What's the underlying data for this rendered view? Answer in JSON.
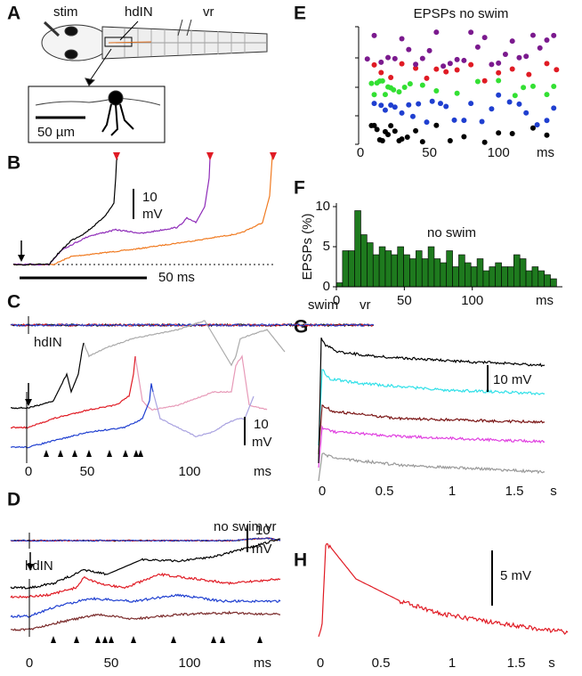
{
  "panel_labels": [
    "A",
    "B",
    "C",
    "D",
    "E",
    "F",
    "G",
    "H"
  ],
  "A": {
    "labels": [
      "stim",
      "hdIN",
      "vr"
    ],
    "scale": "50 µm"
  },
  "B": {
    "scale_v": [
      "10",
      "mV"
    ],
    "scale_t": "50 ms"
  },
  "C": {
    "vr_labels": [
      "swim",
      "vr"
    ],
    "cell": "hdIN",
    "scale_v": [
      "10",
      "mV"
    ],
    "ticks": [
      "0",
      "50",
      "100"
    ],
    "unit": "ms"
  },
  "D": {
    "vr_labels": [
      "no swim",
      "vr"
    ],
    "cell": "hdIN",
    "scale_v": [
      "10",
      "mV"
    ],
    "ticks": [
      "0",
      "50",
      "100"
    ],
    "unit": "ms"
  },
  "G": {
    "scale": "10 mV",
    "ticks": [
      "0",
      "0.5",
      "1",
      "1.5"
    ],
    "unit": "s"
  },
  "H": {
    "scale": "5 mV",
    "ticks": [
      "0",
      "0.5",
      "1",
      "1.5"
    ],
    "unit": "s"
  },
  "chart_data": [
    {
      "type": "raster",
      "title": "EPSPs no swim",
      "xlabel": "ms",
      "xlim": [
        0,
        145
      ],
      "xticks": [
        0,
        50,
        100
      ],
      "series": [
        {
          "color": "#000000",
          "x": [
            8,
            10,
            12,
            14,
            16,
            18,
            20,
            22,
            25,
            28,
            30,
            34,
            40,
            45,
            55,
            65,
            75,
            90,
            100,
            110,
            125,
            135
          ]
        },
        {
          "color": "#1f3fd0",
          "x": [
            10,
            15,
            18,
            22,
            25,
            30,
            35,
            38,
            42,
            48,
            52,
            58,
            62,
            68,
            75,
            80,
            88,
            95,
            100,
            108,
            115,
            120,
            128,
            135,
            140
          ]
        },
        {
          "color": "#33e033",
          "x": [
            8,
            10,
            12,
            14,
            16,
            18,
            20,
            22,
            24,
            28,
            32,
            36,
            45,
            55,
            70,
            85,
            100,
            112,
            118,
            125,
            135,
            140
          ]
        },
        {
          "color": "#e01b24",
          "x": [
            10,
            15,
            22,
            30,
            40,
            48,
            55,
            62,
            70,
            80,
            90,
            100,
            110,
            122,
            135,
            142
          ]
        },
        {
          "color": "#7b1a8e",
          "x": [
            5,
            10,
            15,
            20,
            25,
            30,
            35,
            40,
            45,
            50,
            55,
            60,
            65,
            70,
            75,
            80,
            85,
            90,
            95,
            100,
            105,
            110,
            115,
            120,
            125,
            130,
            135,
            140
          ]
        }
      ]
    },
    {
      "type": "histogram",
      "ylabel": "EPSPs (%)",
      "annotation": "no swim",
      "xlabel": "ms",
      "color": "#1e7a1e",
      "xlim": [
        0,
        165
      ],
      "xticks": [
        0,
        50,
        100
      ],
      "ylim": [
        0,
        10
      ],
      "yticks": [
        0,
        5,
        10
      ],
      "bins": [
        0,
        4.5,
        9,
        13.5,
        18,
        22.5,
        27,
        31.5,
        36,
        40.5,
        45,
        49.5,
        54,
        58.5,
        63,
        67.5,
        72,
        76.5,
        81,
        85.5,
        90,
        94.5,
        99,
        103.5,
        108,
        112.5,
        117,
        121.5,
        126,
        130.5,
        135,
        139.5,
        144,
        148.5,
        153,
        157.5,
        162
      ],
      "values": [
        0.5,
        4.5,
        4.5,
        9.5,
        6.5,
        5.5,
        4,
        5,
        4.5,
        4,
        5,
        4,
        3.5,
        4.5,
        3.5,
        5,
        3.5,
        3,
        4.5,
        2.5,
        4,
        3,
        2.5,
        3.5,
        2,
        2.5,
        3,
        2.5,
        2.5,
        4,
        3.5,
        2,
        2.5,
        2,
        1.5,
        1
      ]
    }
  ]
}
